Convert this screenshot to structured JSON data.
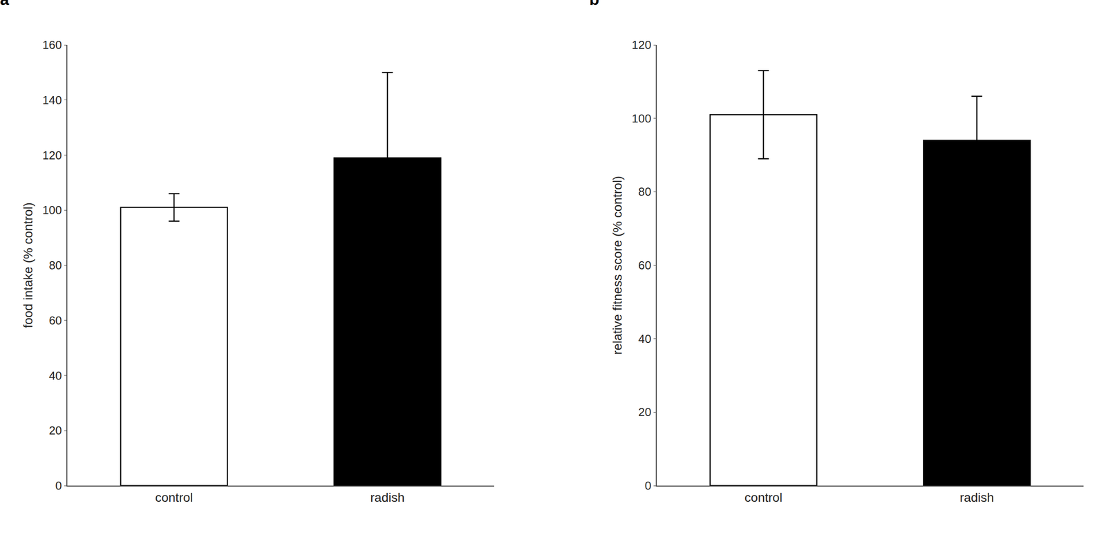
{
  "chart_data": [
    {
      "type": "bar",
      "title": "a",
      "categories": [
        "control",
        "radish"
      ],
      "values": [
        101,
        119
      ],
      "errors": [
        5,
        31
      ],
      "colors": [
        "#ffffff",
        "#000000"
      ],
      "ylabel": "food intake (% control)",
      "ylim": [
        0,
        160
      ],
      "yticks": [
        0,
        20,
        40,
        60,
        80,
        100,
        120,
        140,
        160
      ],
      "grid": false
    },
    {
      "type": "bar",
      "title": "b",
      "categories": [
        "control",
        "radish"
      ],
      "values": [
        101,
        94
      ],
      "errors": [
        12,
        12
      ],
      "colors": [
        "#ffffff",
        "#000000"
      ],
      "ylabel": "relative fitness score (% control)",
      "ylim": [
        0,
        120
      ],
      "yticks": [
        0,
        20,
        40,
        60,
        80,
        100,
        120
      ],
      "grid": false
    }
  ]
}
